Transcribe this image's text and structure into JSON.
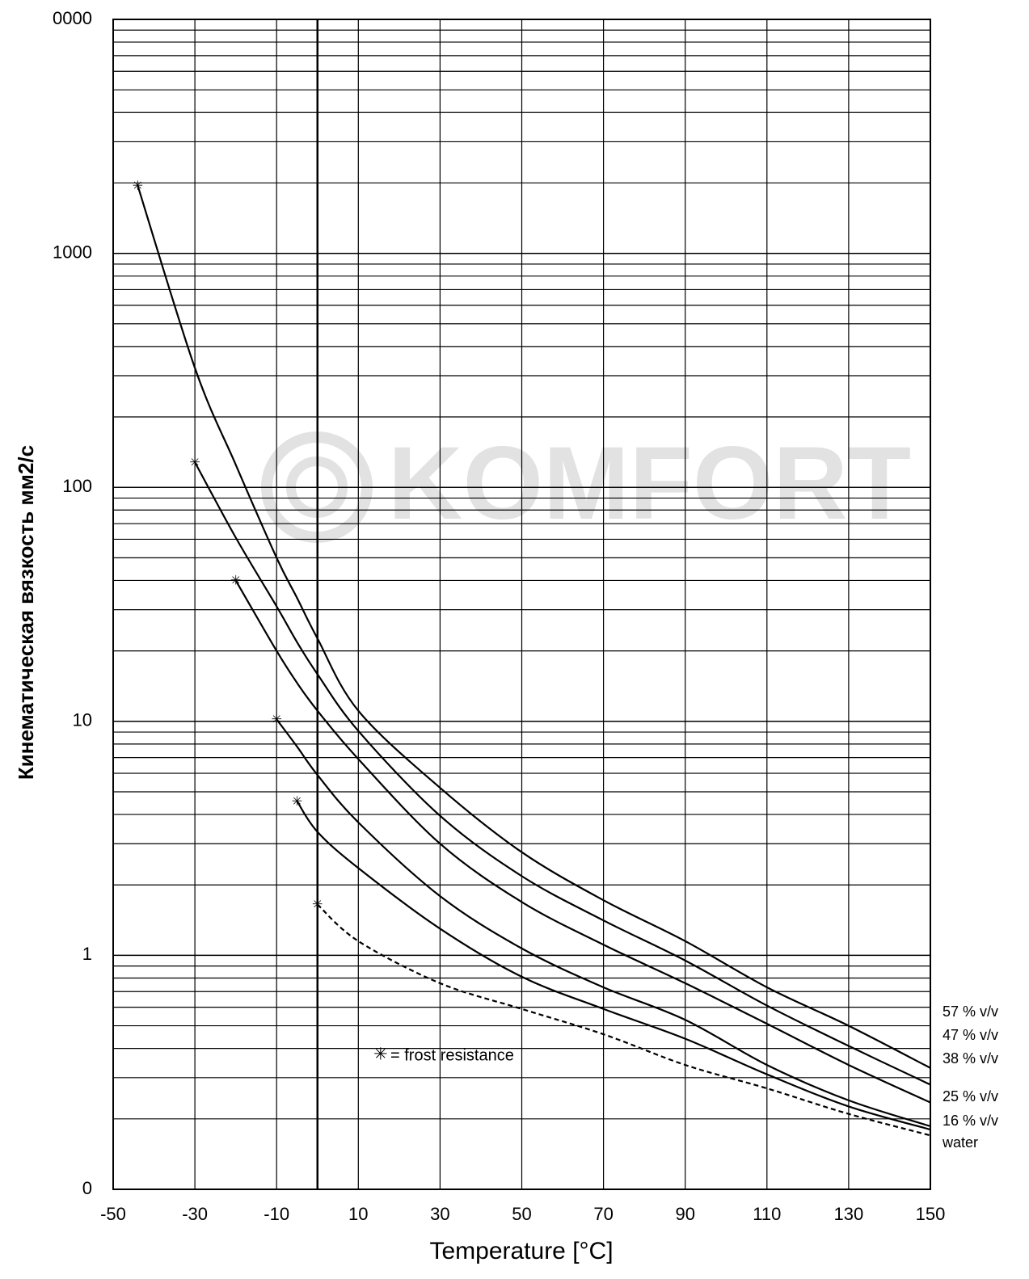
{
  "chart_data": {
    "type": "line",
    "xlabel": "Temperature [°C]",
    "ylabel": "Кинематическая вязкость мм2/с",
    "annotation": "= frost resistance",
    "watermark": "KOMFORT",
    "log_y": true,
    "grid": true,
    "xlim": [
      -50,
      150
    ],
    "xticks": [
      -50,
      -30,
      -10,
      10,
      30,
      50,
      70,
      90,
      110,
      130,
      150
    ],
    "ylim": [
      0.1,
      10000
    ],
    "yticks": [
      {
        "value": 0.1,
        "label": "0"
      },
      1,
      10,
      100,
      1000,
      {
        "value": 10000,
        "label": "0000"
      }
    ],
    "x": [
      -44,
      -30,
      -20,
      -10,
      -5,
      0,
      10,
      30,
      50,
      70,
      90,
      110,
      130,
      150
    ],
    "series": [
      {
        "name": "57 % v/v",
        "color": "#000000",
        "values": [
          1950,
          324,
          125,
          50,
          33.7,
          22.6,
          11.1,
          5.2,
          2.76,
          1.72,
          1.15,
          0.73,
          0.5,
          0.33
        ]
      },
      {
        "name": "47 % v/v",
        "color": "#000000",
        "values": [
          null,
          128,
          61,
          31,
          21.8,
          15.9,
          9.1,
          3.95,
          2.18,
          1.41,
          0.95,
          0.61,
          0.41,
          0.28
        ]
      },
      {
        "name": "38 % v/v",
        "color": "#000000",
        "values": [
          null,
          null,
          40,
          20,
          14.6,
          11.1,
          6.9,
          3.0,
          1.69,
          1.11,
          0.76,
          0.51,
          0.34,
          0.235
        ]
      },
      {
        "name": "25 % v/v",
        "color": "#000000",
        "values": [
          null,
          null,
          null,
          10.2,
          7.8,
          5.9,
          3.7,
          1.79,
          1.07,
          0.73,
          0.53,
          0.34,
          0.24,
          0.186
        ]
      },
      {
        "name": "16 % v/v",
        "color": "#000000",
        "values": [
          null,
          null,
          null,
          null,
          4.56,
          3.37,
          2.36,
          1.3,
          0.81,
          0.59,
          0.44,
          0.31,
          0.226,
          0.18
        ]
      },
      {
        "name": "water",
        "color": "#000000",
        "dashed": true,
        "values": [
          null,
          null,
          null,
          null,
          null,
          1.65,
          1.15,
          0.76,
          0.59,
          0.46,
          0.34,
          0.27,
          0.21,
          0.17
        ]
      }
    ]
  }
}
